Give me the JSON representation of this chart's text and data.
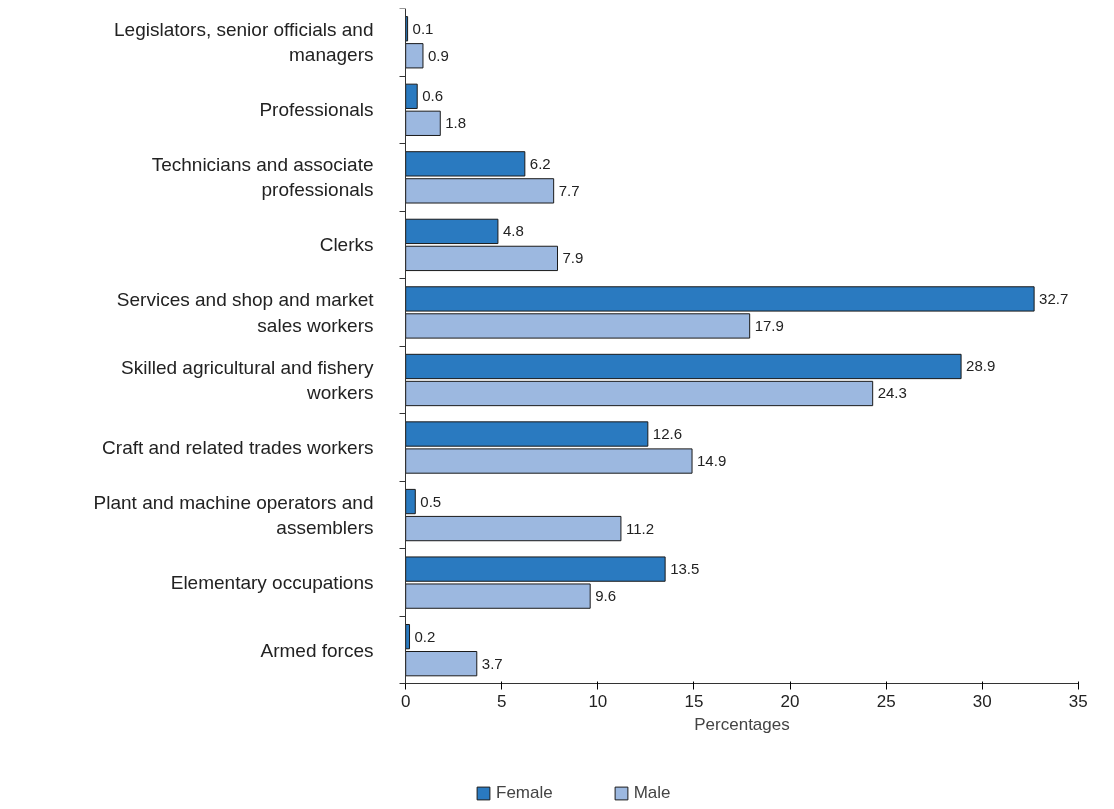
{
  "chart_data": {
    "type": "bar",
    "orientation": "horizontal",
    "xlabel": "Percentages",
    "categories": [
      "Legislators, senior officials and managers",
      "Professionals",
      "Technicians and associate professionals",
      "Clerks",
      "Services and shop and market sales workers",
      "Skilled agricultural and fishery workers",
      "Craft and related trades workers",
      "Plant and machine operators and assemblers",
      "Elementary occupations",
      "Armed forces"
    ],
    "series": [
      {
        "name": "Female",
        "color": "#2a7ac0",
        "values": [
          0.1,
          0.6,
          6.2,
          4.8,
          32.7,
          28.9,
          12.6,
          0.5,
          13.5,
          0.2
        ]
      },
      {
        "name": "Male",
        "color": "#9cb8e0",
        "values": [
          0.9,
          1.8,
          7.7,
          7.9,
          17.9,
          24.3,
          14.9,
          11.2,
          9.6,
          3.7
        ]
      }
    ],
    "xlim": [
      0,
      35
    ],
    "xticks": [
      0,
      5,
      10,
      15,
      20,
      25,
      30,
      35
    ],
    "data_labels": true,
    "legend": "bottom",
    "grid": false
  }
}
